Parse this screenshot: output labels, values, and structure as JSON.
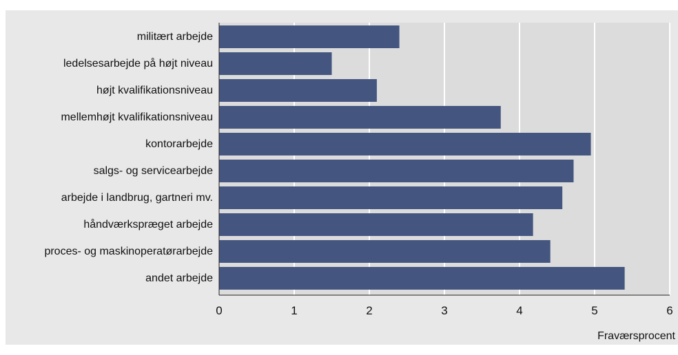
{
  "chart_data": {
    "type": "bar",
    "orientation": "horizontal",
    "title": "",
    "xlabel": "Fraværsprocent",
    "ylabel": "",
    "xlim": [
      0,
      6
    ],
    "xticks": [
      "0",
      "1",
      "2",
      "3",
      "4",
      "5",
      "6"
    ],
    "grid": true,
    "legend": "none",
    "categories": [
      "militært arbejde",
      "ledelsesarbejde på højt niveau",
      "højt kvalifikationsniveau",
      "mellemhøjt kvalifikationsniveau",
      "kontorarbejde",
      "salgs- og servicearbejde",
      "arbejde i landbrug, gartneri mv.",
      "håndværkspræget arbejde",
      "proces- og maskinoperatørarbejde",
      "andet arbejde"
    ],
    "values": [
      2.4,
      1.5,
      2.1,
      3.75,
      4.95,
      4.72,
      4.57,
      4.18,
      4.41,
      5.4
    ],
    "colors": {
      "bar": "#44557f",
      "plot_background": "#dcdcdc",
      "chart_background": "#e8e8e8",
      "gridline": "#ffffff"
    }
  }
}
